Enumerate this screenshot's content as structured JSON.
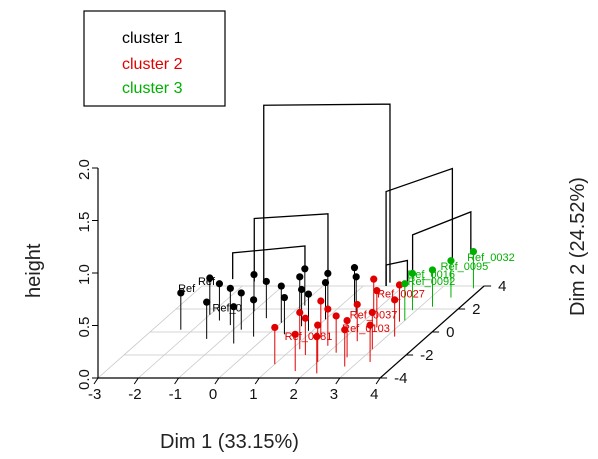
{
  "chart_data": {
    "type": "scatter",
    "subtype": "3d-dendrogram-factor-map",
    "xlabel": "Dim 1 (33.15%)",
    "ylabel": "Dim 2 (24.52%)",
    "zlabel": "height",
    "x_ticks": [
      "-3",
      "-2",
      "-1",
      "0",
      "1",
      "2",
      "3",
      "4"
    ],
    "y_ticks": [
      "4",
      "2",
      "0",
      "-2",
      "-4"
    ],
    "z_ticks": [
      "0.0",
      "0.5",
      "1.0",
      "1.5",
      "2.0"
    ],
    "xlim": [
      -3,
      4
    ],
    "ylim": [
      -4,
      4
    ],
    "zlim": [
      0,
      2
    ],
    "grid": true,
    "legend": {
      "position": "top-left",
      "items": [
        {
          "name": "cluster 1",
          "color": "#000000"
        },
        {
          "name": "cluster 2",
          "color": "#e00000"
        },
        {
          "name": "cluster 3",
          "color": "#00b000"
        }
      ]
    },
    "series": [
      {
        "name": "cluster 1",
        "color": "#000000",
        "points": [
          {
            "x": -2.0,
            "y": 1.5
          },
          {
            "x": -1.6,
            "y": 1.0
          },
          {
            "x": -1.2,
            "y": 0.6
          },
          {
            "x": -1.0,
            "y": 1.8
          },
          {
            "x": -0.8,
            "y": 0.2
          },
          {
            "x": -0.5,
            "y": 1.2
          },
          {
            "x": -0.3,
            "y": -0.4
          },
          {
            "x": 0.0,
            "y": 0.8
          },
          {
            "x": 0.2,
            "y": 1.6
          },
          {
            "x": 0.4,
            "y": -0.2
          },
          {
            "x": 0.6,
            "y": 0.5
          },
          {
            "x": 0.8,
            "y": 1.9
          },
          {
            "x": 1.0,
            "y": 1.1
          },
          {
            "x": -1.4,
            "y": -0.6
          },
          {
            "x": -0.6,
            "y": -1.0
          },
          {
            "x": 0.1,
            "y": 2.3
          },
          {
            "x": 1.3,
            "y": 2.4
          },
          {
            "x": 1.6,
            "y": 1.6
          },
          {
            "x": -2.3,
            "y": 0.2
          },
          {
            "x": 0.9,
            "y": 0.1
          }
        ],
        "labels": [
          {
            "text": "Ref",
            "x": -2.1,
            "y": 0.9
          },
          {
            "text": "Ref",
            "x": -2.4,
            "y": 0.3
          },
          {
            "text": "Ref_0",
            "x": -1.0,
            "y": -1.4
          }
        ]
      },
      {
        "name": "cluster 2",
        "color": "#e00000",
        "points": [
          {
            "x": 1.2,
            "y": -1.5
          },
          {
            "x": 1.5,
            "y": -2.0
          },
          {
            "x": 1.8,
            "y": -1.2
          },
          {
            "x": 2.0,
            "y": -2.6
          },
          {
            "x": 2.2,
            "y": -1.8
          },
          {
            "x": 2.4,
            "y": -0.8
          },
          {
            "x": 2.6,
            "y": -2.2
          },
          {
            "x": 2.8,
            "y": -3.0
          },
          {
            "x": 3.0,
            "y": -1.5
          },
          {
            "x": 2.5,
            "y": 0.4
          },
          {
            "x": 2.9,
            "y": 0.9
          },
          {
            "x": 3.2,
            "y": -0.4
          },
          {
            "x": 1.0,
            "y": -2.8
          },
          {
            "x": 1.7,
            "y": -3.4
          },
          {
            "x": 2.3,
            "y": -3.6
          },
          {
            "x": 3.3,
            "y": -2.6
          },
          {
            "x": 2.1,
            "y": 1.4
          },
          {
            "x": 1.4,
            "y": -0.5
          }
        ],
        "labels": [
          {
            "text": "Ref_0027",
            "x": 2.7,
            "y": -0.2
          },
          {
            "text": "Ref_0037",
            "x": 2.6,
            "y": -2.0
          },
          {
            "text": "Ref_0103",
            "x": 2.8,
            "y": -3.2
          },
          {
            "text": "Ref_0081",
            "x": 1.6,
            "y": -3.9
          }
        ]
      },
      {
        "name": "cluster 3",
        "color": "#00b000",
        "points": [
          {
            "x": 2.9,
            "y": 1.9
          },
          {
            "x": 3.3,
            "y": 2.2
          },
          {
            "x": 3.5,
            "y": 3.0
          },
          {
            "x": 3.8,
            "y": 3.8
          },
          {
            "x": 3.0,
            "y": 1.0
          }
        ],
        "labels": [
          {
            "text": "Ref_0032",
            "x": 3.9,
            "y": 3.0
          },
          {
            "text": "Ref_0095",
            "x": 3.5,
            "y": 2.2
          },
          {
            "text": "Ref_0016",
            "x": 2.9,
            "y": 1.5
          },
          {
            "text": "Ref_0092",
            "x": 3.1,
            "y": 0.9
          }
        ]
      }
    ],
    "dendrogram": [
      {
        "from": [
          -0.5,
          1.0,
          0.35
        ],
        "to": [
          2.6,
          1.1,
          0.35
        ],
        "top": 2.05,
        "color": "#000000"
      },
      {
        "from": [
          -0.8,
          1.2,
          0.35
        ],
        "to": [
          0.9,
          1.6,
          0.35
        ],
        "top": 0.95,
        "color": "#000000"
      },
      {
        "from": [
          2.6,
          0.8,
          0.35
        ],
        "to": [
          3.6,
          2.8,
          0.35
        ],
        "top": 1.25,
        "color": "#000000"
      },
      {
        "from": [
          3.0,
          1.6,
          0.35
        ],
        "to": [
          3.8,
          3.6,
          0.35
        ],
        "top": 0.75,
        "color": "#000000"
      },
      {
        "from": [
          -1.4,
          1.4,
          0.35
        ],
        "to": [
          0.2,
          2.0,
          0.35
        ],
        "top": 0.6,
        "color": "#000000"
      },
      {
        "from": [
          2.6,
          0.8,
          0.35
        ],
        "to": [
          3.0,
          1.2,
          0.35
        ],
        "top": 0.55,
        "color": "#000000"
      }
    ]
  }
}
